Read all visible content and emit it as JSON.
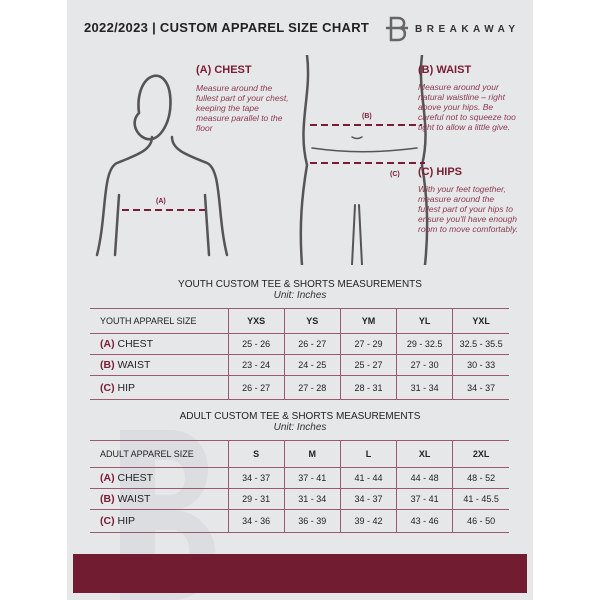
{
  "header": {
    "title": "2022/2023 | CUSTOM APPAREL SIZE CHART",
    "brand": "BREAKAWAY",
    "logo_letter": "B"
  },
  "guides": {
    "chest": {
      "label": "(A) CHEST",
      "marker": "(A)",
      "text": "Measure around the fullest part of your chest, keeping the tape measure parallel to the floor"
    },
    "waist": {
      "label": "(B) WAIST",
      "marker": "(B)",
      "text": "Measure around your natural waistline – right above your hips. Be careful not to squeeze too tight to allow a little give."
    },
    "hips": {
      "label": "(C) HIPS",
      "marker": "(C)",
      "text": "With your feet together, measure around the fullest part of your hips to ensure you'll have enough room to move comfortably."
    }
  },
  "youth": {
    "title": "YOUTH CUSTOM TEE & SHORTS MEASUREMENTS",
    "unit": "Unit: Inches",
    "header": [
      "YOUTH APPAREL SIZE",
      "YXS",
      "YS",
      "YM",
      "YL",
      "YXL"
    ],
    "rows": [
      {
        "code": "(A)",
        "name": "CHEST",
        "values": [
          "25 - 26",
          "26 - 27",
          "27 - 29",
          "29 - 32.5",
          "32.5 - 35.5"
        ]
      },
      {
        "code": "(B)",
        "name": "WAIST",
        "values": [
          "23 - 24",
          "24 - 25",
          "25 - 27",
          "27 - 30",
          "30 - 33"
        ]
      },
      {
        "code": "(C)",
        "name": "HIP",
        "values": [
          "26 - 27",
          "27 - 28",
          "28 - 31",
          "31 - 34",
          "34 - 37"
        ]
      }
    ]
  },
  "adult": {
    "title": "ADULT CUSTOM TEE & SHORTS MEASUREMENTS",
    "unit": "Unit: Inches",
    "header": [
      "ADULT APPAREL SIZE",
      "S",
      "M",
      "L",
      "XL",
      "2XL"
    ],
    "rows": [
      {
        "code": "(A)",
        "name": "CHEST",
        "values": [
          "34 - 37",
          "37 - 41",
          "41 - 44",
          "44 - 48",
          "48 - 52"
        ]
      },
      {
        "code": "(B)",
        "name": "WAIST",
        "values": [
          "29 - 31",
          "31 - 34",
          "34 - 37",
          "37 - 41",
          "41 - 45.5"
        ]
      },
      {
        "code": "(C)",
        "name": "HIP",
        "values": [
          "34 - 36",
          "36 - 39",
          "39 - 42",
          "43 - 46",
          "46 - 50"
        ]
      }
    ]
  },
  "colors": {
    "accent": "#721c32",
    "background": "#e6e7e9"
  }
}
